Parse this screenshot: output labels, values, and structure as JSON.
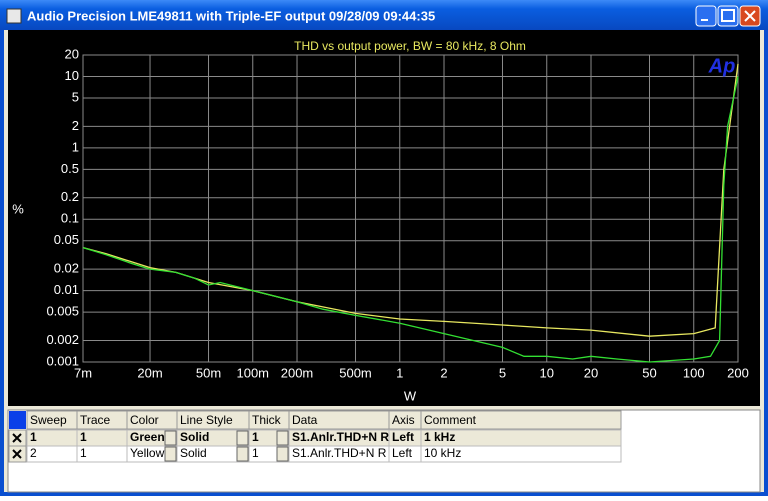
{
  "window": {
    "title": "Audio Precision  LME49811 with Triple-EF output  09/28/09 09:44:35"
  },
  "chart_data": {
    "type": "line",
    "title": "THD vs output power, BW = 80 kHz, 8 Ohm",
    "logo": "Ap",
    "x_label": "W",
    "y_label": "%",
    "xscale": "log",
    "yscale": "log",
    "grid": true,
    "xlim": [
      0.007,
      200
    ],
    "ylim": [
      0.001,
      20
    ],
    "xticks": [
      {
        "value": 0.007,
        "label": "7m"
      },
      {
        "value": 0.02,
        "label": "20m"
      },
      {
        "value": 0.05,
        "label": "50m"
      },
      {
        "value": 0.1,
        "label": "100m"
      },
      {
        "value": 0.2,
        "label": "200m"
      },
      {
        "value": 0.5,
        "label": "500m"
      },
      1,
      2,
      5,
      10,
      20,
      50,
      100,
      200
    ],
    "yticks": [
      20,
      10,
      5,
      2,
      1,
      0.5,
      0.2,
      0.1,
      0.05,
      0.02,
      0.01,
      0.005,
      0.002,
      0.001
    ],
    "series": [
      {
        "name": "1 kHz",
        "color": "#33e033",
        "x": [
          0.007,
          0.01,
          0.015,
          0.02,
          0.03,
          0.04,
          0.05,
          0.06,
          0.1,
          0.2,
          0.3,
          0.5,
          1,
          2,
          5,
          7,
          10,
          15,
          20,
          30,
          50,
          100,
          130,
          150,
          160,
          170,
          200
        ],
        "values": [
          0.04,
          0.032,
          0.024,
          0.02,
          0.018,
          0.015,
          0.012,
          0.013,
          0.01,
          0.007,
          0.0055,
          0.0045,
          0.0035,
          0.0025,
          0.0016,
          0.0012,
          0.0012,
          0.0011,
          0.0012,
          0.0011,
          0.001,
          0.0011,
          0.0012,
          0.002,
          0.3,
          2,
          10
        ]
      },
      {
        "name": "10 kHz",
        "color": "#e8e860",
        "x": [
          0.007,
          0.01,
          0.02,
          0.03,
          0.05,
          0.1,
          0.2,
          0.5,
          1,
          2,
          5,
          10,
          20,
          50,
          100,
          140,
          160,
          180,
          200
        ],
        "values": [
          0.04,
          0.033,
          0.021,
          0.018,
          0.013,
          0.01,
          0.007,
          0.0048,
          0.004,
          0.0037,
          0.0033,
          0.003,
          0.0028,
          0.0023,
          0.0025,
          0.003,
          0.5,
          3,
          15
        ]
      }
    ]
  },
  "table": {
    "headers": [
      "Sweep",
      "Trace",
      "Color",
      "Line Style",
      "Thick",
      "Data",
      "Axis",
      "Comment"
    ],
    "rows": [
      [
        "1",
        "1",
        "Green",
        "Solid",
        "1",
        "S1.Anlr.THD+N R",
        "Left",
        "1 kHz"
      ],
      [
        "2",
        "1",
        "Yellow",
        "Solid",
        "1",
        "S1.Anlr.THD+N R",
        "Left",
        "10 kHz"
      ]
    ]
  }
}
